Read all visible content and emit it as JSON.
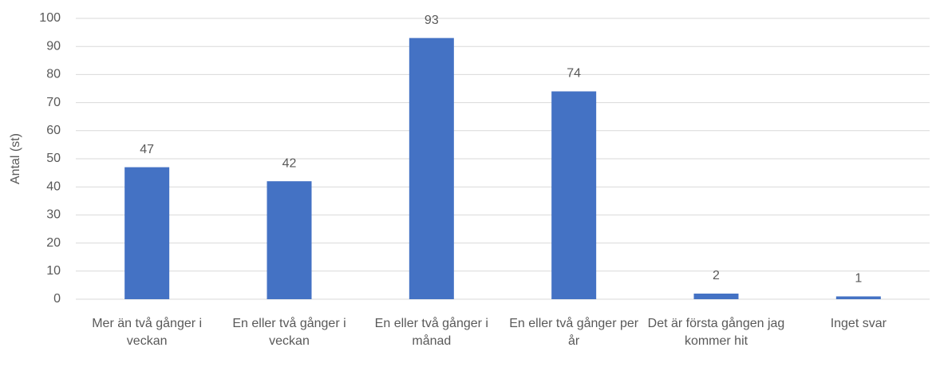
{
  "chart_data": {
    "type": "bar",
    "y_label": "Antal (st)",
    "categories": [
      "Mer än två gånger i veckan",
      "En eller två gånger i veckan",
      "En eller två gånger i månad",
      "En eller två gånger per år",
      "Det är första gången jag kommer hit",
      "Inget svar"
    ],
    "values": [
      47,
      42,
      93,
      74,
      2,
      1
    ],
    "color": "#4472c4",
    "ylim": [
      0,
      100
    ],
    "yticks": [
      0,
      10,
      20,
      30,
      40,
      50,
      60,
      70,
      80,
      90,
      100
    ],
    "grid": true
  }
}
